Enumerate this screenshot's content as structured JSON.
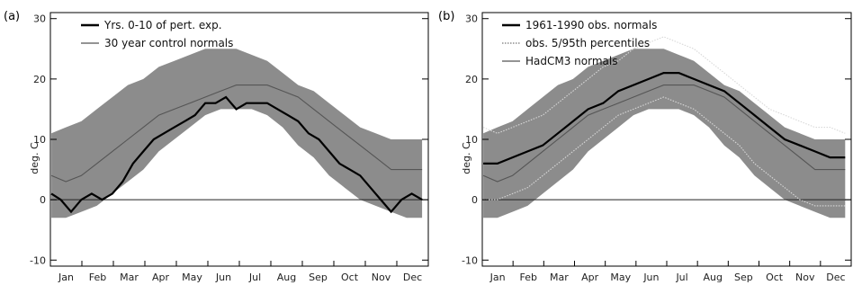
{
  "chart_data": [
    {
      "type": "line",
      "panel_label": "(a)",
      "ylabel": "deg. C",
      "ylim": [
        -11,
        31
      ],
      "yticks": [
        -10,
        0,
        10,
        20,
        30
      ],
      "months": [
        "Jan",
        "Feb",
        "Mar",
        "Apr",
        "May",
        "Jun",
        "Jul",
        "Aug",
        "Sep",
        "Oct",
        "Nov",
        "Dec"
      ],
      "band": {
        "x": [
          1,
          15,
          30,
          45,
          60,
          75,
          90,
          105,
          120,
          135,
          150,
          165,
          180,
          195,
          210,
          225,
          240,
          255,
          270,
          285,
          300,
          315,
          330,
          345,
          360
        ],
        "lower": [
          -3,
          -3,
          -2,
          -1,
          1,
          3,
          5,
          8,
          10,
          12,
          14,
          15,
          15,
          15,
          14,
          12,
          9,
          7,
          4,
          2,
          0,
          -1,
          -2,
          -3,
          -3
        ],
        "upper": [
          11,
          12,
          13,
          15,
          17,
          19,
          20,
          22,
          23,
          24,
          25,
          25,
          25,
          24,
          23,
          21,
          19,
          18,
          16,
          14,
          12,
          11,
          10,
          10,
          10
        ]
      },
      "reference_line": 0,
      "series": [
        {
          "name": "Yrs. 0-10 of pert. exp.",
          "style": "thick",
          "x": [
            1,
            10,
            20,
            30,
            40,
            50,
            60,
            70,
            80,
            90,
            100,
            110,
            120,
            130,
            140,
            150,
            160,
            170,
            180,
            190,
            200,
            210,
            220,
            230,
            240,
            250,
            260,
            270,
            280,
            290,
            300,
            310,
            320,
            330,
            340,
            350,
            360
          ],
          "values": [
            1,
            0,
            -2,
            0,
            1,
            0,
            1,
            3,
            6,
            8,
            10,
            11,
            12,
            13,
            14,
            16,
            16,
            17,
            15,
            16,
            16,
            16,
            15,
            14,
            13,
            11,
            10,
            8,
            6,
            5,
            4,
            2,
            0,
            -2,
            0,
            1,
            0
          ]
        },
        {
          "name": "30 year control normals",
          "style": "thin",
          "x": [
            1,
            15,
            30,
            45,
            60,
            75,
            90,
            105,
            120,
            135,
            150,
            165,
            180,
            195,
            210,
            225,
            240,
            255,
            270,
            285,
            300,
            315,
            330,
            345,
            360
          ],
          "values": [
            4,
            3,
            4,
            6,
            8,
            10,
            12,
            14,
            15,
            16,
            17,
            18,
            19,
            19,
            19,
            18,
            17,
            15,
            13,
            11,
            9,
            7,
            5,
            5,
            5
          ]
        }
      ]
    },
    {
      "type": "line",
      "panel_label": "(b)",
      "ylabel": "deg. C",
      "ylim": [
        -11,
        31
      ],
      "yticks": [
        -10,
        0,
        10,
        20,
        30
      ],
      "months": [
        "Jan",
        "Feb",
        "Mar",
        "Apr",
        "May",
        "Jun",
        "Jul",
        "Aug",
        "Sep",
        "Oct",
        "Nov",
        "Dec"
      ],
      "band": {
        "x": [
          1,
          15,
          30,
          45,
          60,
          75,
          90,
          105,
          120,
          135,
          150,
          165,
          180,
          195,
          210,
          225,
          240,
          255,
          270,
          285,
          300,
          315,
          330,
          345,
          360
        ],
        "lower": [
          -3,
          -3,
          -2,
          -1,
          1,
          3,
          5,
          8,
          10,
          12,
          14,
          15,
          15,
          15,
          14,
          12,
          9,
          7,
          4,
          2,
          0,
          -1,
          -2,
          -3,
          -3
        ],
        "upper": [
          11,
          12,
          13,
          15,
          17,
          19,
          20,
          22,
          23,
          24,
          25,
          25,
          25,
          24,
          23,
          21,
          19,
          18,
          16,
          14,
          12,
          11,
          10,
          10,
          10
        ]
      },
      "reference_line": 0,
      "series": [
        {
          "name": "1961-1990 obs. normals",
          "style": "thick",
          "x": [
            1,
            15,
            30,
            45,
            60,
            75,
            90,
            105,
            120,
            135,
            150,
            165,
            180,
            195,
            210,
            225,
            240,
            255,
            270,
            285,
            300,
            315,
            330,
            345,
            360
          ],
          "values": [
            6,
            6,
            7,
            8,
            9,
            11,
            13,
            15,
            16,
            18,
            19,
            20,
            21,
            21,
            20,
            19,
            18,
            16,
            14,
            12,
            10,
            9,
            8,
            7,
            7
          ]
        },
        {
          "name": "obs. 5/95th percentiles",
          "style": "dotted",
          "x": [
            1,
            15,
            30,
            45,
            60,
            75,
            90,
            105,
            120,
            135,
            150,
            165,
            180,
            195,
            210,
            225,
            240,
            255,
            270,
            285,
            300,
            315,
            330,
            345,
            360
          ],
          "values": [
            12,
            11,
            12,
            13,
            14,
            16,
            18,
            20,
            22,
            23,
            25,
            26,
            27,
            26,
            25,
            23,
            21,
            19,
            17,
            15,
            14,
            13,
            12,
            12,
            11
          ]
        },
        {
          "name": "",
          "style": "dotted",
          "x": [
            1,
            15,
            30,
            45,
            60,
            75,
            90,
            105,
            120,
            135,
            150,
            165,
            180,
            195,
            210,
            225,
            240,
            255,
            270,
            285,
            300,
            315,
            330,
            345,
            360
          ],
          "values": [
            0,
            0,
            1,
            2,
            4,
            6,
            8,
            10,
            12,
            14,
            15,
            16,
            17,
            16,
            15,
            13,
            11,
            9,
            6,
            4,
            2,
            0,
            -1,
            -1,
            -1
          ]
        },
        {
          "name": "HadCM3 normals",
          "style": "thin",
          "x": [
            1,
            15,
            30,
            45,
            60,
            75,
            90,
            105,
            120,
            135,
            150,
            165,
            180,
            195,
            210,
            225,
            240,
            255,
            270,
            285,
            300,
            315,
            330,
            345,
            360
          ],
          "values": [
            4,
            3,
            4,
            6,
            8,
            10,
            12,
            14,
            15,
            16,
            17,
            18,
            19,
            19,
            19,
            18,
            17,
            15,
            13,
            11,
            9,
            7,
            5,
            5,
            5
          ]
        }
      ]
    }
  ]
}
